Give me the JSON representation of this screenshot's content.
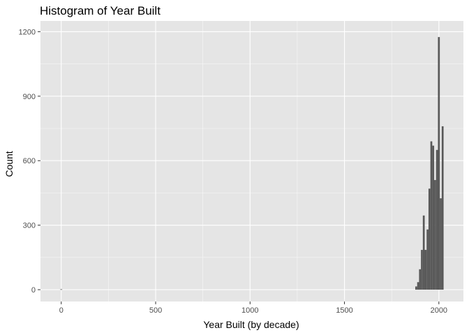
{
  "chart_data": {
    "type": "bar",
    "title": "Histogram of Year Built",
    "xlabel": "Year Built (by decade)",
    "ylabel": "Count",
    "xlim": [
      -110,
      2130
    ],
    "ylim": [
      -55,
      1250
    ],
    "x_ticks": [
      0,
      500,
      1000,
      1500,
      2000
    ],
    "x_tick_labels": [
      "0",
      "500",
      "1000",
      "1500",
      "2000"
    ],
    "y_ticks": [
      0,
      300,
      600,
      900,
      1200
    ],
    "y_tick_labels": [
      "0",
      "300",
      "600",
      "900",
      "1200"
    ],
    "bin_width": 10,
    "grid": true,
    "colors": {
      "panel": "#e5e5e5",
      "grid_major": "#ffffff",
      "bar": "#595959",
      "tick": "#333333"
    },
    "bins": [
      {
        "x": 0,
        "count": 2
      },
      {
        "x": 1880,
        "count": 15
      },
      {
        "x": 1890,
        "count": 35
      },
      {
        "x": 1900,
        "count": 95
      },
      {
        "x": 1910,
        "count": 185
      },
      {
        "x": 1920,
        "count": 345
      },
      {
        "x": 1930,
        "count": 185
      },
      {
        "x": 1940,
        "count": 280
      },
      {
        "x": 1950,
        "count": 470
      },
      {
        "x": 1960,
        "count": 690
      },
      {
        "x": 1970,
        "count": 670
      },
      {
        "x": 1980,
        "count": 510
      },
      {
        "x": 1990,
        "count": 650
      },
      {
        "x": 2000,
        "count": 1175
      },
      {
        "x": 2010,
        "count": 425
      },
      {
        "x": 2020,
        "count": 760
      }
    ]
  }
}
